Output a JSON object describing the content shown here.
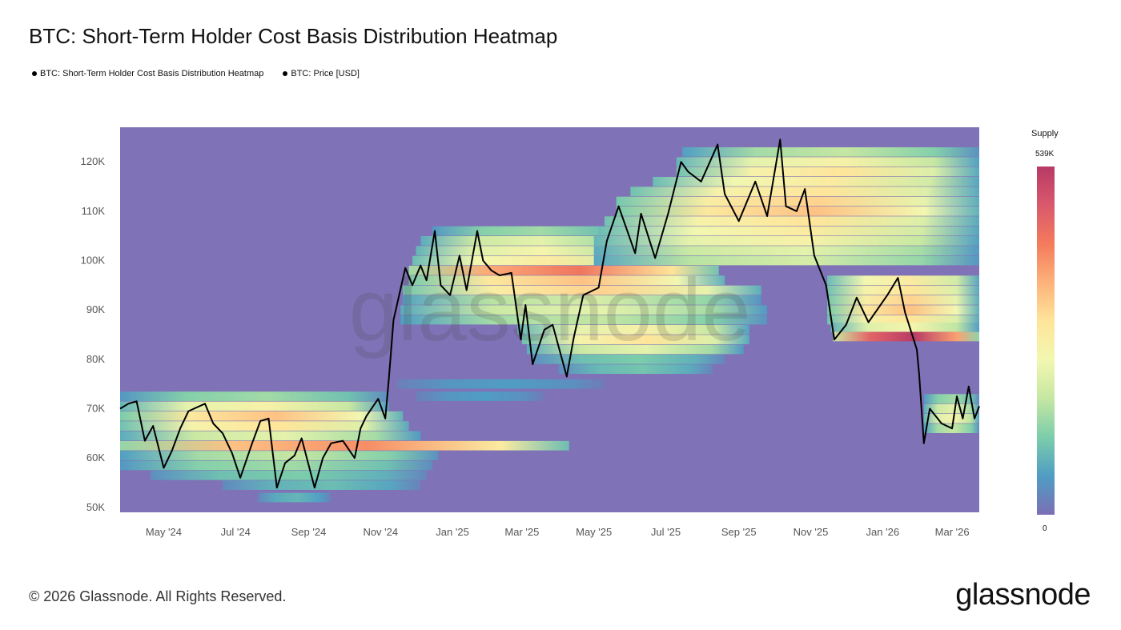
{
  "title": "BTC: Short-Term Holder Cost Basis Distribution Heatmap",
  "legend": [
    "BTC: Short-Term Holder Cost Basis Distribution Heatmap",
    "BTC: Price [USD]"
  ],
  "footer": "© 2026 Glassnode. All Rights Reserved.",
  "logo": "glassnode",
  "watermark": "glassnode",
  "colorbar": {
    "title": "Supply",
    "max_label": "539K",
    "min_label": "0",
    "max": 539000,
    "min": 0,
    "colors": [
      "#7b6fb5",
      "#4f9dc4",
      "#7ccdab",
      "#c5e7a2",
      "#f3f7b0",
      "#fee59a",
      "#fdb27a",
      "#f47b5c",
      "#d9596c",
      "#b83a66"
    ]
  },
  "chart_data": {
    "type": "heatmap",
    "title": "BTC: Short-Term Holder Cost Basis Distribution Heatmap",
    "xlim": [
      "2024-03-25",
      "2026-03-24"
    ],
    "ylim": [
      49000,
      127000
    ],
    "y_ticks": [
      {
        "v": 50000,
        "label": "50K"
      },
      {
        "v": 60000,
        "label": "60K"
      },
      {
        "v": 70000,
        "label": "70K"
      },
      {
        "v": 80000,
        "label": "80K"
      },
      {
        "v": 90000,
        "label": "90K"
      },
      {
        "v": 100000,
        "label": "100K"
      },
      {
        "v": 110000,
        "label": "110K"
      },
      {
        "v": 120000,
        "label": "120K"
      }
    ],
    "x_ticks": [
      {
        "d": "2024-05-01",
        "label": "May '24"
      },
      {
        "d": "2024-07-01",
        "label": "Jul '24"
      },
      {
        "d": "2024-09-01",
        "label": "Sep '24"
      },
      {
        "d": "2024-11-01",
        "label": "Nov '24"
      },
      {
        "d": "2025-01-01",
        "label": "Jan '25"
      },
      {
        "d": "2025-03-01",
        "label": "Mar '25"
      },
      {
        "d": "2025-05-01",
        "label": "May '25"
      },
      {
        "d": "2025-07-01",
        "label": "Jul '25"
      },
      {
        "d": "2025-09-01",
        "label": "Sep '25"
      },
      {
        "d": "2025-11-01",
        "label": "Nov '25"
      },
      {
        "d": "2026-01-01",
        "label": "Jan '26"
      },
      {
        "d": "2026-03-01",
        "label": "Mar '26"
      }
    ],
    "background_color": "#7f72b6",
    "heatmap_bands": [
      [
        72500,
        "2024-03-25",
        "2024-11-08",
        150000
      ],
      [
        70500,
        "2024-03-25",
        "2024-11-08",
        260000
      ],
      [
        68500,
        "2024-03-25",
        "2024-11-20",
        340000
      ],
      [
        66500,
        "2024-03-25",
        "2024-11-25",
        300000
      ],
      [
        64500,
        "2024-03-25",
        "2024-12-05",
        220000
      ],
      [
        62500,
        "2024-03-25",
        "2025-04-10",
        400000
      ],
      [
        60500,
        "2024-03-25",
        "2024-12-20",
        180000
      ],
      [
        58500,
        "2024-03-25",
        "2024-12-15",
        150000
      ],
      [
        56500,
        "2024-04-20",
        "2024-12-10",
        120000
      ],
      [
        54500,
        "2024-06-20",
        "2024-12-05",
        100000
      ],
      [
        52000,
        "2024-07-20",
        "2024-09-20",
        90000
      ],
      [
        106000,
        "2024-12-15",
        "2025-06-01",
        150000
      ],
      [
        104000,
        "2024-12-05",
        "2025-06-10",
        220000
      ],
      [
        102000,
        "2024-12-01",
        "2025-06-15",
        250000
      ],
      [
        100000,
        "2024-11-28",
        "2025-07-01",
        280000
      ],
      [
        98000,
        "2024-11-25",
        "2025-08-15",
        430000
      ],
      [
        96000,
        "2024-11-25",
        "2025-08-20",
        340000
      ],
      [
        94000,
        "2024-11-20",
        "2025-09-20",
        320000
      ],
      [
        92000,
        "2024-11-20",
        "2025-09-20",
        200000
      ],
      [
        90000,
        "2024-11-18",
        "2025-09-25",
        220000
      ],
      [
        88000,
        "2024-11-18",
        "2025-09-25",
        180000
      ],
      [
        86000,
        "2025-02-25",
        "2025-09-10",
        260000
      ],
      [
        84000,
        "2025-03-01",
        "2025-09-10",
        300000
      ],
      [
        82000,
        "2025-03-05",
        "2025-09-05",
        220000
      ],
      [
        80000,
        "2025-03-10",
        "2025-08-20",
        120000
      ],
      [
        78000,
        "2025-04-01",
        "2025-08-10",
        110000
      ],
      [
        75000,
        "2024-11-15",
        "2025-05-10",
        60000
      ],
      [
        72500,
        "2024-12-01",
        "2025-03-20",
        60000
      ],
      [
        122000,
        "2025-07-15",
        "2026-03-24",
        180000
      ],
      [
        120000,
        "2025-07-10",
        "2026-03-24",
        260000
      ],
      [
        118000,
        "2025-07-10",
        "2026-03-24",
        300000
      ],
      [
        116000,
        "2025-06-20",
        "2026-03-24",
        280000
      ],
      [
        114000,
        "2025-06-01",
        "2026-03-24",
        300000
      ],
      [
        112000,
        "2025-05-20",
        "2026-03-24",
        320000
      ],
      [
        110000,
        "2025-05-20",
        "2026-03-24",
        340000
      ],
      [
        108000,
        "2025-05-10",
        "2026-03-24",
        300000
      ],
      [
        106000,
        "2025-05-05",
        "2026-03-24",
        280000
      ],
      [
        104000,
        "2025-05-01",
        "2026-03-24",
        260000
      ],
      [
        102000,
        "2025-05-01",
        "2026-03-24",
        220000
      ],
      [
        100000,
        "2025-05-01",
        "2026-03-24",
        200000
      ],
      [
        96000,
        "2025-11-15",
        "2026-03-24",
        280000
      ],
      [
        94000,
        "2025-11-15",
        "2026-03-24",
        300000
      ],
      [
        92000,
        "2025-11-15",
        "2026-03-24",
        320000
      ],
      [
        90000,
        "2025-11-15",
        "2026-03-24",
        340000
      ],
      [
        88000,
        "2025-11-15",
        "2026-03-24",
        300000
      ],
      [
        86500,
        "2025-11-18",
        "2026-03-24",
        250000
      ],
      [
        84600,
        "2025-11-20",
        "2026-03-24",
        539000
      ],
      [
        72000,
        "2026-02-05",
        "2026-03-24",
        150000
      ],
      [
        70000,
        "2026-02-05",
        "2026-03-24",
        220000
      ],
      [
        68000,
        "2026-02-05",
        "2026-03-24",
        250000
      ],
      [
        66000,
        "2026-02-05",
        "2026-03-24",
        180000
      ]
    ],
    "price_series": {
      "name": "BTC: Price [USD]",
      "points": [
        [
          "2024-03-25",
          70000
        ],
        [
          "2024-04-01",
          71000
        ],
        [
          "2024-04-08",
          71500
        ],
        [
          "2024-04-15",
          63500
        ],
        [
          "2024-04-22",
          66500
        ],
        [
          "2024-05-01",
          58000
        ],
        [
          "2024-05-08",
          61500
        ],
        [
          "2024-05-15",
          66000
        ],
        [
          "2024-05-22",
          69500
        ],
        [
          "2024-06-05",
          71000
        ],
        [
          "2024-06-12",
          67000
        ],
        [
          "2024-06-20",
          65000
        ],
        [
          "2024-06-28",
          61000
        ],
        [
          "2024-07-05",
          56000
        ],
        [
          "2024-07-15",
          63000
        ],
        [
          "2024-07-22",
          67500
        ],
        [
          "2024-07-29",
          68000
        ],
        [
          "2024-08-05",
          54000
        ],
        [
          "2024-08-12",
          59000
        ],
        [
          "2024-08-20",
          60500
        ],
        [
          "2024-08-26",
          64000
        ],
        [
          "2024-09-06",
          54000
        ],
        [
          "2024-09-13",
          60000
        ],
        [
          "2024-09-20",
          63000
        ],
        [
          "2024-09-30",
          63500
        ],
        [
          "2024-10-10",
          60000
        ],
        [
          "2024-10-15",
          66000
        ],
        [
          "2024-10-20",
          68500
        ],
        [
          "2024-10-30",
          72000
        ],
        [
          "2024-11-05",
          68000
        ],
        [
          "2024-11-08",
          76000
        ],
        [
          "2024-11-12",
          88000
        ],
        [
          "2024-11-22",
          98500
        ],
        [
          "2024-11-28",
          95000
        ],
        [
          "2024-12-05",
          99000
        ],
        [
          "2024-12-10",
          96000
        ],
        [
          "2024-12-17",
          106000
        ],
        [
          "2024-12-22",
          95000
        ],
        [
          "2024-12-30",
          93000
        ],
        [
          "2025-01-07",
          101000
        ],
        [
          "2025-01-13",
          94000
        ],
        [
          "2025-01-22",
          106000
        ],
        [
          "2025-01-27",
          100000
        ],
        [
          "2025-02-03",
          98000
        ],
        [
          "2025-02-10",
          97000
        ],
        [
          "2025-02-20",
          97500
        ],
        [
          "2025-02-28",
          84000
        ],
        [
          "2025-03-04",
          91000
        ],
        [
          "2025-03-10",
          79000
        ],
        [
          "2025-03-20",
          86000
        ],
        [
          "2025-03-27",
          87000
        ],
        [
          "2025-04-08",
          76500
        ],
        [
          "2025-04-14",
          84500
        ],
        [
          "2025-04-22",
          93000
        ],
        [
          "2025-05-05",
          94500
        ],
        [
          "2025-05-12",
          104000
        ],
        [
          "2025-05-22",
          111000
        ],
        [
          "2025-06-05",
          101500
        ],
        [
          "2025-06-10",
          109500
        ],
        [
          "2025-06-22",
          100500
        ],
        [
          "2025-07-03",
          109500
        ],
        [
          "2025-07-14",
          120000
        ],
        [
          "2025-07-20",
          118000
        ],
        [
          "2025-07-31",
          116000
        ],
        [
          "2025-08-14",
          123500
        ],
        [
          "2025-08-20",
          113500
        ],
        [
          "2025-09-01",
          108000
        ],
        [
          "2025-09-15",
          116000
        ],
        [
          "2025-09-25",
          109000
        ],
        [
          "2025-10-06",
          124500
        ],
        [
          "2025-10-11",
          111000
        ],
        [
          "2025-10-20",
          110000
        ],
        [
          "2025-10-27",
          114500
        ],
        [
          "2025-11-04",
          101000
        ],
        [
          "2025-11-14",
          95000
        ],
        [
          "2025-11-21",
          84000
        ],
        [
          "2025-12-01",
          87000
        ],
        [
          "2025-12-10",
          92500
        ],
        [
          "2025-12-20",
          87500
        ],
        [
          "2026-01-05",
          93000
        ],
        [
          "2026-01-14",
          96500
        ],
        [
          "2026-01-20",
          89500
        ],
        [
          "2026-01-30",
          82000
        ],
        [
          "2026-02-01",
          77000
        ],
        [
          "2026-02-05",
          63000
        ],
        [
          "2026-02-10",
          70000
        ],
        [
          "2026-02-20",
          67000
        ],
        [
          "2026-03-01",
          66000
        ],
        [
          "2026-03-05",
          72500
        ],
        [
          "2026-03-10",
          68000
        ],
        [
          "2026-03-15",
          74500
        ],
        [
          "2026-03-20",
          68000
        ],
        [
          "2026-03-24",
          70500
        ]
      ]
    }
  }
}
